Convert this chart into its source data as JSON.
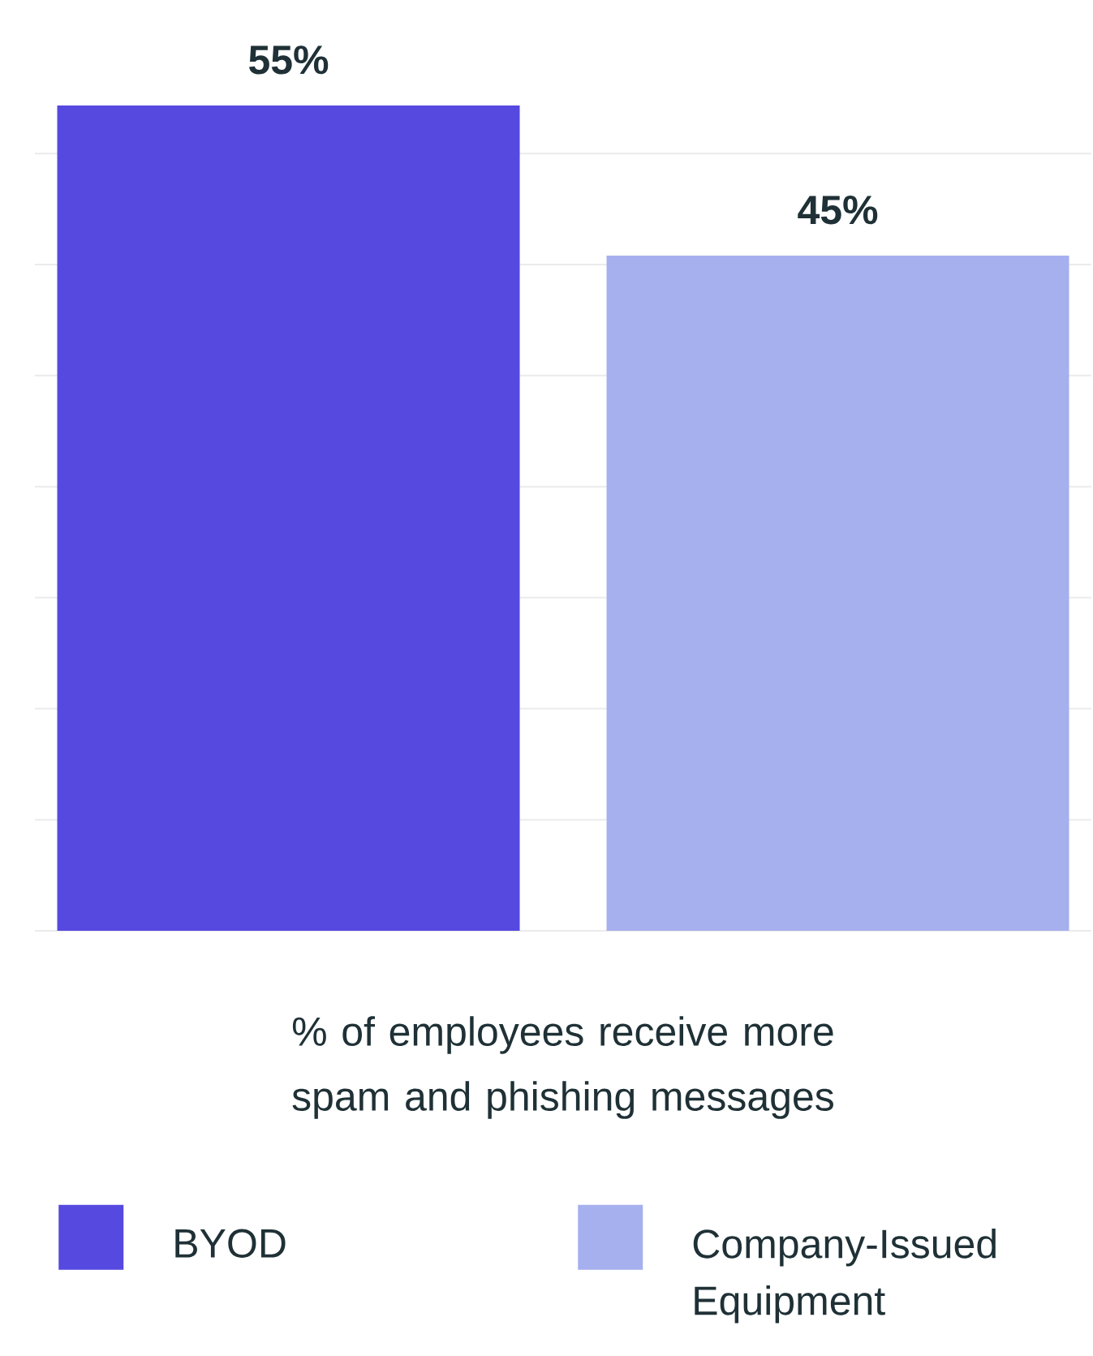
{
  "chart_data": {
    "type": "bar",
    "xlabel": "% of employees receive more spam and phishing messages",
    "categories": [
      null
    ],
    "series": [
      {
        "name": "BYOD",
        "color": "#5549df",
        "values": [
          55
        ],
        "value_labels": [
          "55%"
        ]
      },
      {
        "name": "Company-Issued Equipment",
        "color": "#a6b0ee",
        "values": [
          45
        ],
        "value_labels": [
          "45%"
        ]
      }
    ],
    "yticks": [
      {
        "value": 0,
        "label": null
      },
      {
        "value": 7.4,
        "label": null
      },
      {
        "value": 14.8,
        "label": null
      },
      {
        "value": 22.2,
        "label": null
      },
      {
        "value": 29.6,
        "label": null
      },
      {
        "value": 37,
        "label": null
      },
      {
        "value": 44.4,
        "label": null
      },
      {
        "value": 51.8,
        "label": null
      }
    ],
    "grid": "y",
    "legend": "bottom"
  }
}
